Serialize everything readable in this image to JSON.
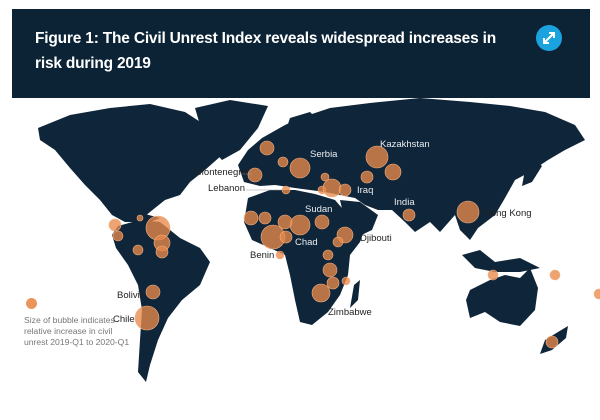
{
  "header": {
    "title": "Figure 1: The Civil Unrest Index reveals widespread increases in risk during 2019",
    "expand_icon": "expand-arrows-icon",
    "accent_color": "#1ba3df",
    "background_color": "#0b2335"
  },
  "map": {
    "land_color": "#0f2539",
    "bubble_color": "#e8894a",
    "labels": [
      {
        "text": "Kazakhstan",
        "tone": "light"
      },
      {
        "text": "Serbia",
        "tone": "light"
      },
      {
        "text": "Montenegro",
        "tone": "dark"
      },
      {
        "text": "Lebanon",
        "tone": "dark"
      },
      {
        "text": "Iraq",
        "tone": "light"
      },
      {
        "text": "India",
        "tone": "light"
      },
      {
        "text": "Hong Kong",
        "tone": "dark"
      },
      {
        "text": "Sudan",
        "tone": "light"
      },
      {
        "text": "Chad",
        "tone": "light"
      },
      {
        "text": "Djibouti",
        "tone": "dark"
      },
      {
        "text": "Benin",
        "tone": "dark"
      },
      {
        "text": "Bolivia",
        "tone": "dark"
      },
      {
        "text": "Chile",
        "tone": "dark"
      },
      {
        "text": "Zimbabwe",
        "tone": "dark"
      }
    ]
  },
  "legend": {
    "text": "Size of bubble indicates relative increase in civil unrest 2019-Q1 to 2020-Q1"
  }
}
